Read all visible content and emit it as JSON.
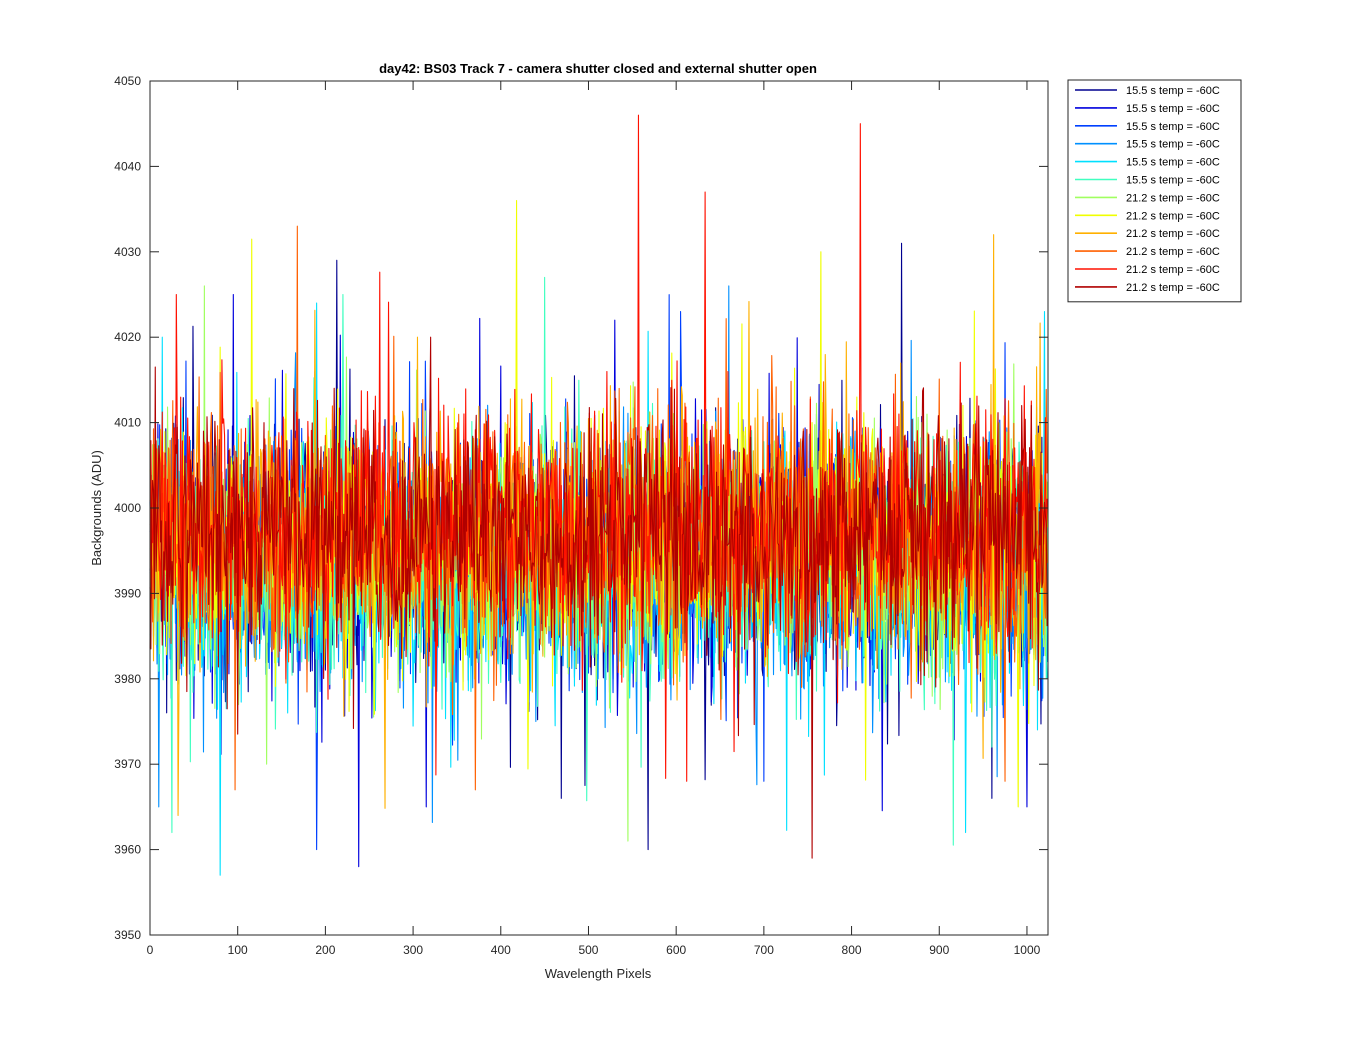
{
  "chart_data": {
    "type": "line",
    "title": "day42: BS03  Track 7 - camera shutter closed and external shutter open",
    "xlabel": "Wavelength Pixels",
    "ylabel": "Backgrounds (ADU)",
    "xlim": [
      0,
      1024
    ],
    "ylim": [
      3950,
      4050
    ],
    "xticks": [
      0,
      100,
      200,
      300,
      400,
      500,
      600,
      700,
      800,
      900,
      1000
    ],
    "yticks": [
      3950,
      3960,
      3970,
      3980,
      3990,
      4000,
      4010,
      4020,
      4030,
      4040,
      4050
    ],
    "grid": false,
    "legend_position": "outside-top-right",
    "series": [
      {
        "name": "15.5 s temp = -60C",
        "color": "#00008f",
        "mean": 3994,
        "spread": 7,
        "spikes": [
          [
            213,
            4029
          ],
          [
            469,
            3966
          ],
          [
            568,
            3960
          ],
          [
            857,
            4031
          ],
          [
            960,
            3966
          ]
        ]
      },
      {
        "name": "15.5 s temp = -60C",
        "color": "#0000dd",
        "mean": 3994,
        "spread": 7,
        "spikes": [
          [
            95,
            4025
          ],
          [
            238,
            3958
          ],
          [
            315,
            3965
          ],
          [
            530,
            4022
          ],
          [
            1000,
            3965
          ]
        ]
      },
      {
        "name": "15.5 s temp = -60C",
        "color": "#0040ff",
        "mean": 3994,
        "spread": 7,
        "spikes": [
          [
            190,
            3960
          ],
          [
            605,
            4023
          ],
          [
            700,
            3968
          ],
          [
            760,
            4011
          ]
        ]
      },
      {
        "name": "15.5 s temp = -60C",
        "color": "#0090ff",
        "mean": 3993,
        "spread": 7,
        "spikes": [
          [
            10,
            3965
          ],
          [
            230,
            3980
          ],
          [
            440,
            3975
          ],
          [
            660,
            4026
          ]
        ]
      },
      {
        "name": "15.5 s temp = -60C",
        "color": "#00e0ff",
        "mean": 3993,
        "spread": 7,
        "spikes": [
          [
            14,
            4020
          ],
          [
            80,
            3957
          ],
          [
            190,
            4024
          ],
          [
            930,
            3962
          ],
          [
            1020,
            4023
          ]
        ]
      },
      {
        "name": "15.5 s temp = -60C",
        "color": "#40ffc0",
        "mean": 3993,
        "spread": 7,
        "spikes": [
          [
            25,
            3962
          ],
          [
            220,
            4025
          ],
          [
            450,
            4027
          ],
          [
            960,
            3972
          ]
        ]
      },
      {
        "name": "21.2 s temp = -60C",
        "color": "#a0ff60",
        "mean": 3995,
        "spread": 7,
        "spikes": [
          [
            62,
            4026
          ],
          [
            545,
            3961
          ],
          [
            880,
            4010
          ]
        ]
      },
      {
        "name": "21.2 s temp = -60C",
        "color": "#f0ff00",
        "mean": 3996,
        "spread": 7,
        "spikes": [
          [
            418,
            4036
          ],
          [
            765,
            4030
          ],
          [
            990,
            3965
          ]
        ]
      },
      {
        "name": "21.2 s temp = -60C",
        "color": "#ffb000",
        "mean": 3996,
        "spread": 7,
        "spikes": [
          [
            32,
            3964
          ],
          [
            305,
            4020
          ],
          [
            962,
            4032
          ]
        ]
      },
      {
        "name": "21.2 s temp = -60C",
        "color": "#ff6000",
        "mean": 3997,
        "spread": 7,
        "spikes": [
          [
            97,
            3967
          ],
          [
            168,
            4033
          ],
          [
            371,
            3967
          ],
          [
            975,
            3968
          ]
        ]
      },
      {
        "name": "21.2 s temp = -60C",
        "color": "#ff1000",
        "mean": 3998,
        "spread": 7,
        "spikes": [
          [
            30,
            4025
          ],
          [
            557,
            4046
          ],
          [
            633,
            4037
          ],
          [
            810,
            4045
          ],
          [
            612,
            3968
          ]
        ]
      },
      {
        "name": "21.2 s temp = -60C",
        "color": "#b00000",
        "mean": 3997,
        "spread": 7,
        "spikes": [
          [
            755,
            3959
          ],
          [
            320,
            4020
          ],
          [
            1005,
            4012
          ]
        ]
      }
    ]
  }
}
